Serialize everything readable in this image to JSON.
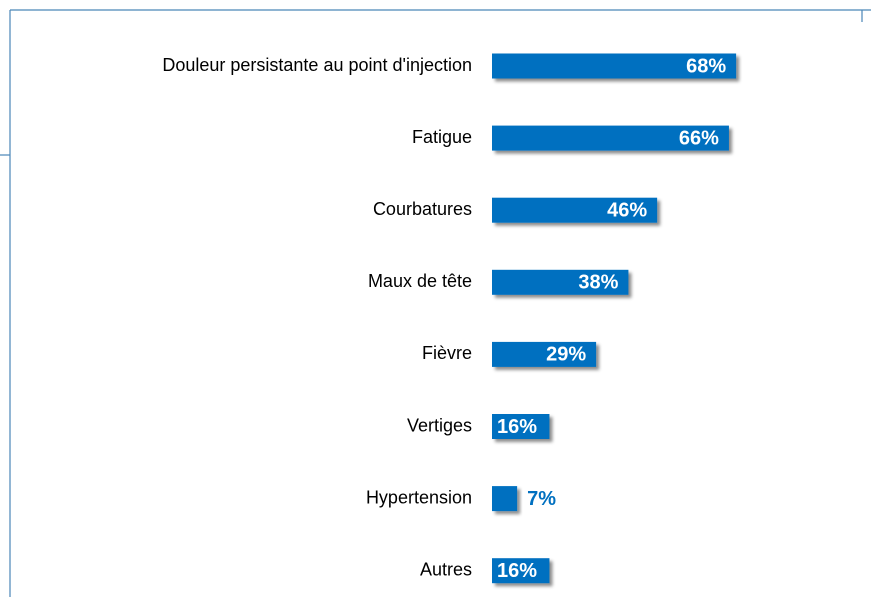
{
  "chart_data": {
    "type": "bar",
    "orientation": "horizontal",
    "categories": [
      "Douleur persistante au point d'injection",
      "Fatigue",
      "Courbatures",
      "Maux de tête",
      "Fièvre",
      "Vertiges",
      "Hypertension",
      "Autres"
    ],
    "values": [
      68,
      66,
      46,
      38,
      29,
      16,
      7,
      16
    ],
    "value_labels": [
      "68%",
      "66%",
      "46%",
      "38%",
      "29%",
      "16%",
      "7%",
      "16%"
    ],
    "color": "#0070c0"
  }
}
